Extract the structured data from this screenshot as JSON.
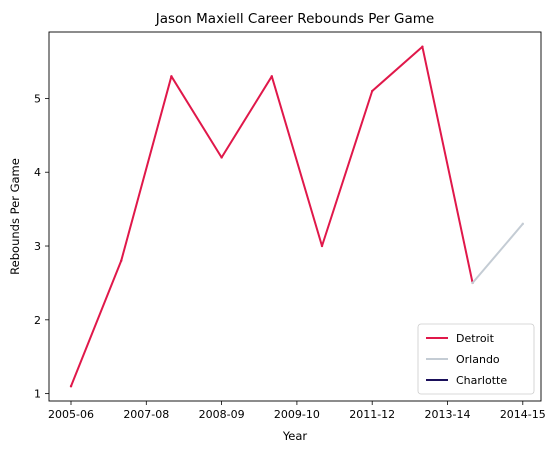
{
  "chart_data": {
    "type": "line",
    "title": "Jason Maxiell Career Rebounds Per Game",
    "xlabel": "Year",
    "ylabel": "Rebounds Per Game",
    "x_tick_labels": [
      "2005-06",
      "2007-08",
      "2008-09",
      "2009-10",
      "2011-12",
      "2013-14",
      "2014-15"
    ],
    "y_ticks": [
      1,
      2,
      3,
      4,
      5
    ],
    "ylim": [
      0.9,
      5.9
    ],
    "grid": false,
    "legend_position": "bottom-right",
    "series": [
      {
        "name": "Detroit",
        "color": "#e0184a",
        "points": [
          {
            "x": 0,
            "y": 1.1
          },
          {
            "x": 1,
            "y": 2.8
          },
          {
            "x": 2,
            "y": 5.3
          },
          {
            "x": 3,
            "y": 4.2
          },
          {
            "x": 4,
            "y": 5.3
          },
          {
            "x": 5,
            "y": 3.0
          },
          {
            "x": 6,
            "y": 5.1
          },
          {
            "x": 7,
            "y": 5.7
          },
          {
            "x": 8,
            "y": 2.5
          }
        ]
      },
      {
        "name": "Orlando",
        "color": "#c4ccd4",
        "points": [
          {
            "x": 8,
            "y": 2.5
          },
          {
            "x": 9,
            "y": 3.3
          }
        ]
      },
      {
        "name": "Charlotte",
        "color": "#1a0f5a",
        "points": []
      }
    ]
  }
}
